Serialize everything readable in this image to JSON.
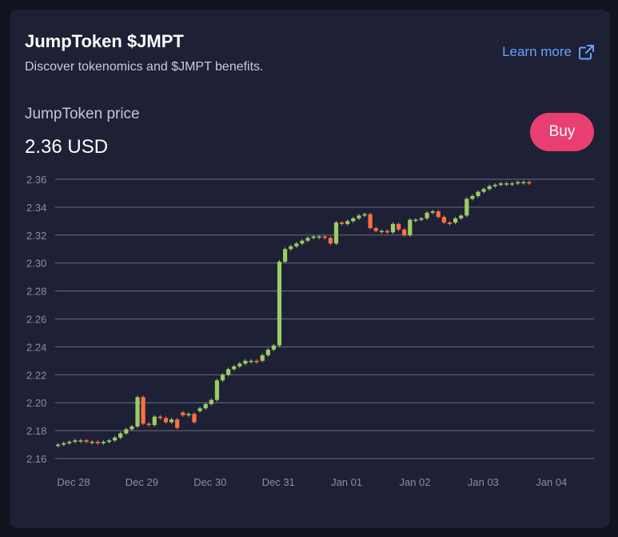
{
  "header": {
    "title": "JumpToken $JMPT",
    "subtitle": "Discover tokenomics and $JMPT benefits.",
    "learn_more_label": "Learn more"
  },
  "price": {
    "label": "JumpToken price",
    "value": "2.36 USD"
  },
  "actions": {
    "buy_label": "Buy"
  },
  "icons": {
    "learn_more": "external-link-icon"
  },
  "colors": {
    "up": "#9ccc65",
    "down": "#ff7043",
    "accent": "#e83e72",
    "link": "#6aa3ff"
  },
  "chart_data": {
    "type": "candlestick",
    "title": "",
    "xlabel": "",
    "ylabel": "",
    "ylim": [
      2.16,
      2.36
    ],
    "y_ticks": [
      2.36,
      2.34,
      2.32,
      2.3,
      2.28,
      2.26,
      2.24,
      2.22,
      2.2,
      2.18,
      2.16
    ],
    "x_ticks": [
      "Dec 28",
      "Dec 29",
      "Dec 30",
      "Dec 31",
      "Jan 01",
      "Jan 02",
      "Jan 03",
      "Jan 04"
    ],
    "grid": true,
    "candles_per_day": 12,
    "series": [
      {
        "open": [
          2.169,
          2.17,
          2.171,
          2.172,
          2.173,
          2.173,
          2.172,
          2.172,
          2.171,
          2.172,
          2.173,
          2.175,
          2.178,
          2.181,
          2.183,
          2.204,
          2.185,
          2.184,
          2.19,
          2.189,
          2.186,
          2.188,
          2.193,
          2.191,
          2.192,
          2.194,
          2.196,
          2.199,
          2.202,
          2.216,
          2.22,
          2.224,
          2.226,
          2.228,
          2.23,
          2.23,
          2.23,
          2.234,
          2.238,
          2.241,
          2.301,
          2.31,
          2.312,
          2.314,
          2.316,
          2.318,
          2.319,
          2.319,
          2.318,
          2.314,
          2.329,
          2.328,
          2.33,
          2.332,
          2.334,
          2.335,
          2.325,
          2.323,
          2.323,
          2.322,
          2.328,
          2.324,
          2.32,
          2.331,
          2.331,
          2.332,
          2.336,
          2.337,
          2.333,
          2.329,
          2.329,
          2.332,
          2.334,
          2.346,
          2.348,
          2.351,
          2.353,
          2.355,
          2.356,
          2.357,
          2.357,
          2.357,
          2.358,
          2.358
        ],
        "close": [
          2.17,
          2.171,
          2.172,
          2.173,
          2.173,
          2.172,
          2.172,
          2.171,
          2.172,
          2.173,
          2.175,
          2.178,
          2.181,
          2.183,
          2.204,
          2.185,
          2.184,
          2.19,
          2.189,
          2.186,
          2.188,
          2.182,
          2.191,
          2.192,
          2.186,
          2.196,
          2.199,
          2.202,
          2.216,
          2.22,
          2.224,
          2.226,
          2.228,
          2.23,
          2.23,
          2.229,
          2.234,
          2.238,
          2.241,
          2.301,
          2.31,
          2.312,
          2.314,
          2.316,
          2.318,
          2.319,
          2.319,
          2.318,
          2.314,
          2.329,
          2.328,
          2.33,
          2.332,
          2.334,
          2.335,
          2.325,
          2.323,
          2.323,
          2.322,
          2.328,
          2.324,
          2.32,
          2.331,
          2.331,
          2.332,
          2.336,
          2.337,
          2.333,
          2.329,
          2.328,
          2.332,
          2.334,
          2.346,
          2.348,
          2.351,
          2.353,
          2.355,
          2.356,
          2.357,
          2.357,
          2.357,
          2.358,
          2.358,
          2.357
        ]
      }
    ]
  }
}
